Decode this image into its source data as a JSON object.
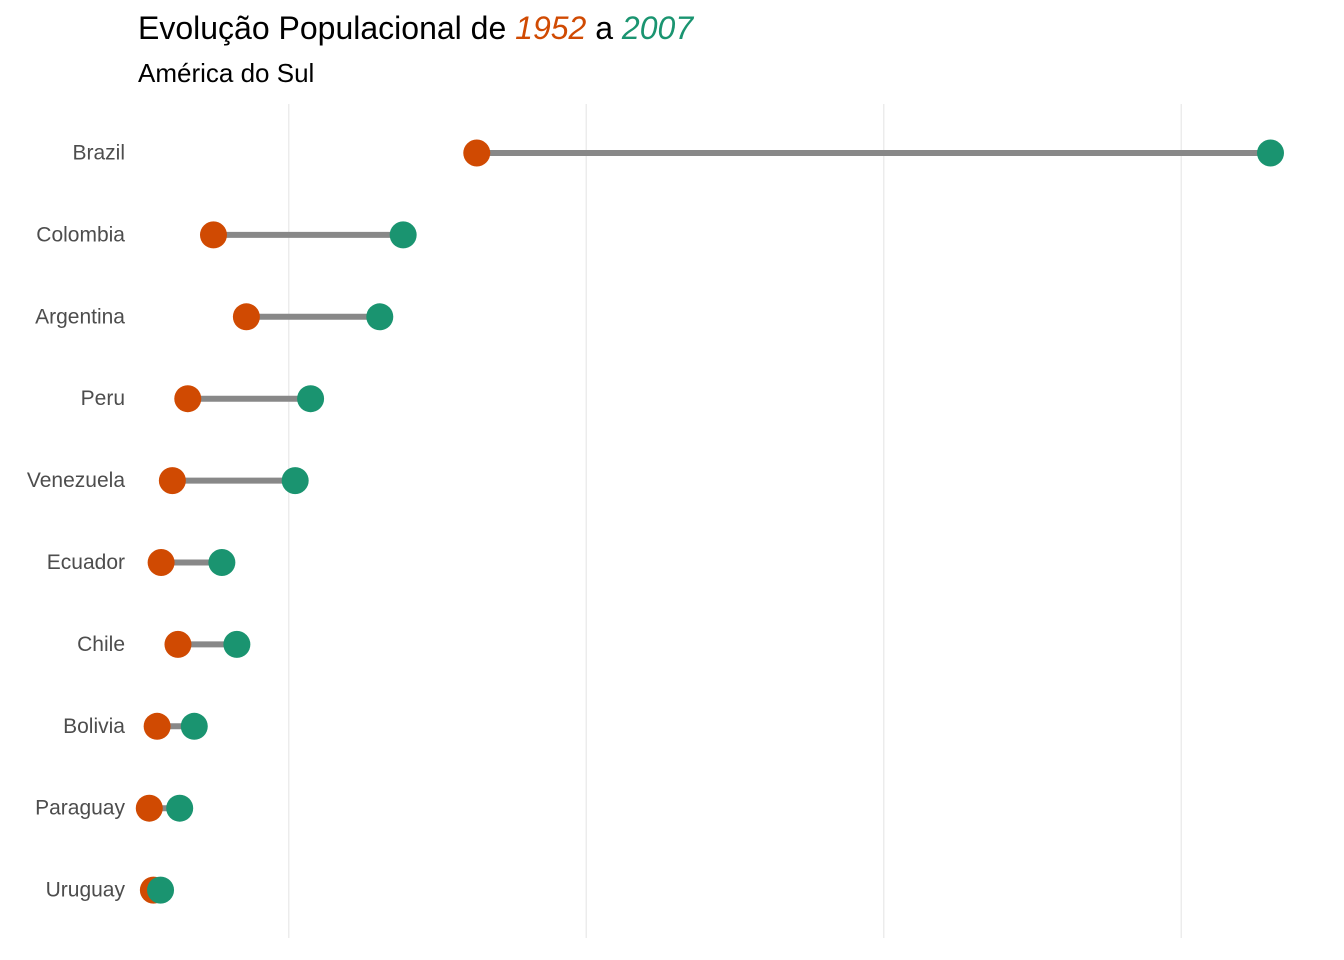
{
  "chart_data": {
    "type": "dumbbell",
    "title": {
      "prefix": "Evolução Populacional de ",
      "start_year": "1952",
      "middle": " a ",
      "end_year": "2007"
    },
    "subtitle": "América do Sul",
    "xlabel": "",
    "ylabel": "",
    "x_tick_labels_shown": false,
    "xlim": [
      0,
      200000000
    ],
    "gridlines_x": [
      25000000,
      75000000,
      125000000,
      175000000
    ],
    "categories": [
      "Brazil",
      "Colombia",
      "Argentina",
      "Peru",
      "Venezuela",
      "Ecuador",
      "Chile",
      "Bolivia",
      "Paraguay",
      "Uruguay"
    ],
    "series": [
      {
        "name": "1952",
        "color": "#d04a02",
        "values": [
          56600000,
          12350000,
          17880000,
          8030000,
          5440000,
          3550000,
          6380000,
          2880000,
          1560000,
          2250000
        ]
      },
      {
        "name": "2007",
        "color": "#1a9470",
        "values": [
          190000000,
          44230000,
          40300000,
          28670000,
          26080000,
          13760000,
          16280000,
          9120000,
          6670000,
          3450000
        ]
      }
    ],
    "segment_color": "#888888",
    "grid": true,
    "grid_color": "#ebebeb",
    "legend": "none",
    "label_color": "#4d4d4d"
  }
}
